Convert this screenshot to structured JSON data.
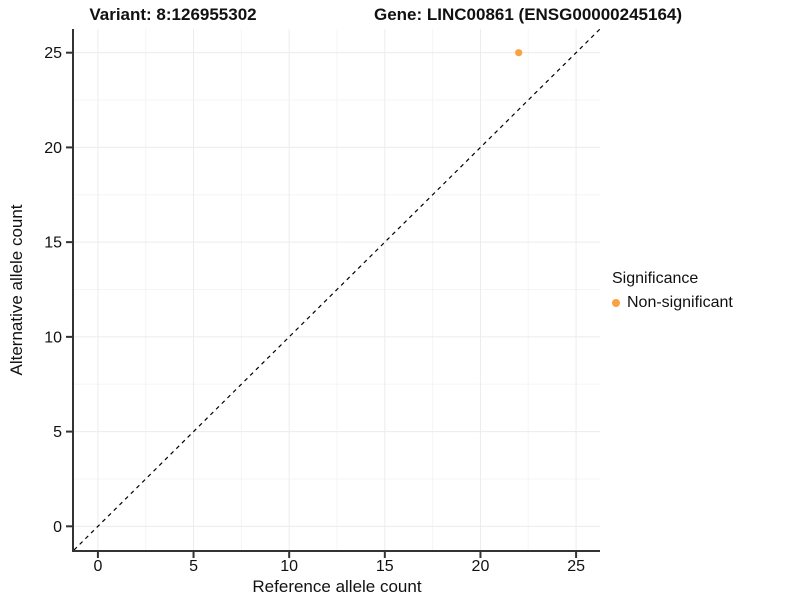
{
  "titles": {
    "variant": "Variant: 8:126955302",
    "gene": "Gene: LINC00861 (ENSG00000245164)"
  },
  "chart_data": {
    "type": "scatter",
    "title_left": "Variant: 8:126955302",
    "title_right": "Gene: LINC00861 (ENSG00000245164)",
    "xlabel": "Reference allele count",
    "ylabel": "Alternative allele count",
    "xlim": [
      -1.25,
      26.25
    ],
    "ylim": [
      -1.25,
      26.25
    ],
    "x_ticks": [
      0,
      5,
      10,
      15,
      20,
      25
    ],
    "y_ticks": [
      0,
      5,
      10,
      15,
      20,
      25
    ],
    "x_minor_ticks": [
      2.5,
      7.5,
      12.5,
      17.5,
      22.5
    ],
    "y_minor_ticks": [
      2.5,
      7.5,
      12.5,
      17.5,
      22.5
    ],
    "grid": true,
    "reference_line": {
      "kind": "identity",
      "style": "dashed",
      "color": "#000000"
    },
    "series": [
      {
        "name": "Non-significant",
        "color": "#F9A242",
        "points": [
          {
            "x": 22,
            "y": 25
          }
        ]
      }
    ],
    "legend": {
      "title": "Significance",
      "position": "right",
      "items": [
        {
          "label": "Non-significant",
          "color": "#F9A242"
        }
      ]
    },
    "colors": {
      "axis_line": "#333333",
      "tick_mark": "#333333",
      "grid_major": "#ECECEC",
      "grid_minor": "#F5F5F5",
      "point": "#F9A242"
    }
  }
}
